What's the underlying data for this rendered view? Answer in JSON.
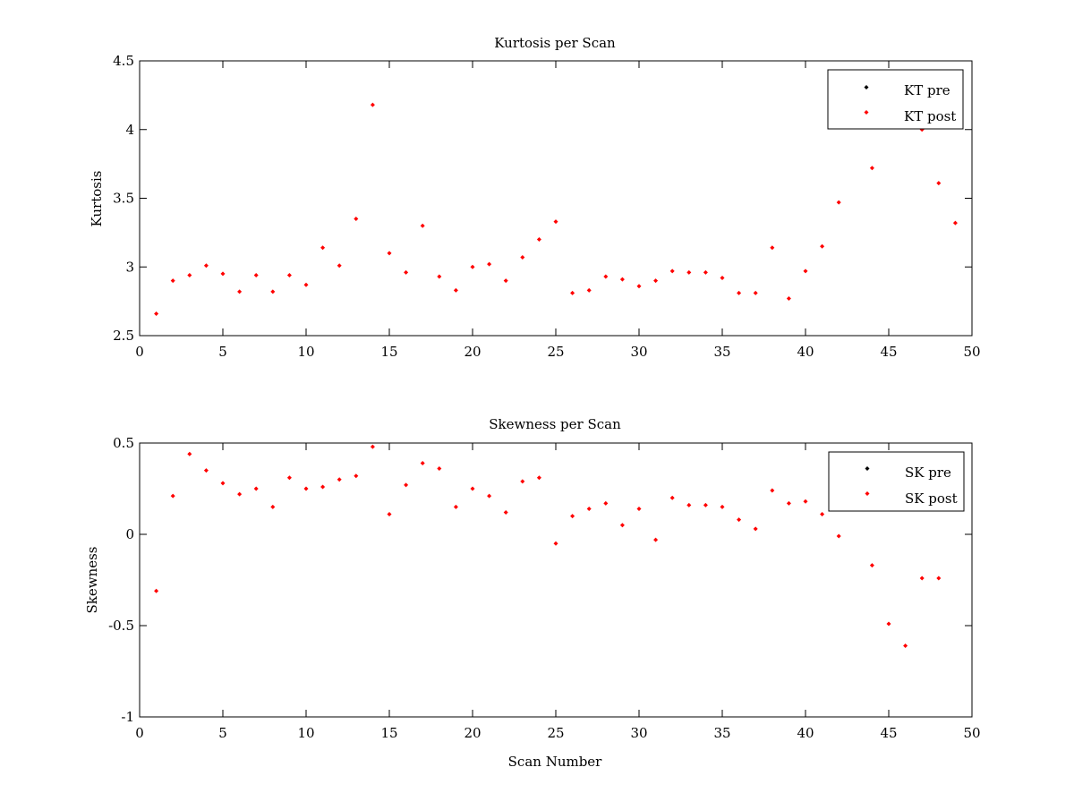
{
  "chart_data": [
    {
      "type": "scatter",
      "title": "Kurtosis per Scan",
      "xlabel": "",
      "ylabel": "Kurtosis",
      "xlim": [
        0,
        50
      ],
      "ylim": [
        2.5,
        4.5
      ],
      "xticks": [
        "0",
        "5",
        "10",
        "15",
        "20",
        "25",
        "30",
        "35",
        "40",
        "45",
        "50"
      ],
      "yticks": [
        "2.5",
        "3",
        "3.5",
        "4",
        "4.5"
      ],
      "legend": {
        "placement": "top-right",
        "entries": [
          "KT pre",
          "KT post"
        ]
      },
      "series": [
        {
          "name": "KT pre",
          "color": "#000000",
          "x": [],
          "y": []
        },
        {
          "name": "KT post",
          "color": "#ff0000",
          "x": [
            1,
            2,
            3,
            4,
            5,
            6,
            7,
            8,
            9,
            10,
            11,
            12,
            13,
            14,
            15,
            16,
            17,
            18,
            19,
            20,
            21,
            22,
            23,
            24,
            25,
            26,
            27,
            28,
            29,
            30,
            31,
            32,
            33,
            34,
            35,
            36,
            37,
            38,
            39,
            40,
            41,
            42,
            44,
            47,
            48,
            49
          ],
          "y": [
            2.66,
            2.9,
            2.94,
            3.01,
            2.95,
            2.82,
            2.94,
            2.82,
            2.94,
            2.87,
            3.14,
            3.01,
            3.35,
            4.18,
            3.1,
            2.96,
            3.3,
            2.93,
            2.83,
            3.0,
            3.02,
            2.9,
            3.07,
            3.2,
            3.33,
            2.81,
            2.83,
            2.93,
            2.91,
            2.86,
            2.9,
            2.97,
            2.96,
            2.96,
            2.92,
            2.81,
            2.81,
            3.14,
            2.77,
            2.97,
            3.15,
            3.47,
            3.72,
            4.0,
            3.61,
            3.32
          ]
        }
      ]
    },
    {
      "type": "scatter",
      "title": "Skewness per Scan",
      "xlabel": "Scan Number",
      "ylabel": "Skewness",
      "xlim": [
        0,
        50
      ],
      "ylim": [
        -1,
        0.5
      ],
      "xticks": [
        "0",
        "5",
        "10",
        "15",
        "20",
        "25",
        "30",
        "35",
        "40",
        "45",
        "50"
      ],
      "yticks": [
        "-1",
        "-0.5",
        "0",
        "0.5"
      ],
      "legend": {
        "placement": "top-right",
        "entries": [
          "SK pre",
          "SK post"
        ]
      },
      "series": [
        {
          "name": "SK pre",
          "color": "#000000",
          "x": [],
          "y": []
        },
        {
          "name": "SK post",
          "color": "#ff0000",
          "x": [
            1,
            2,
            3,
            4,
            5,
            6,
            7,
            8,
            9,
            10,
            11,
            12,
            13,
            14,
            15,
            16,
            17,
            18,
            19,
            20,
            21,
            22,
            23,
            24,
            25,
            26,
            27,
            28,
            29,
            30,
            31,
            32,
            33,
            34,
            35,
            36,
            37,
            38,
            39,
            40,
            41,
            42,
            44,
            45,
            46,
            47,
            48
          ],
          "y": [
            -0.31,
            0.21,
            0.44,
            0.35,
            0.28,
            0.22,
            0.25,
            0.15,
            0.31,
            0.25,
            0.26,
            0.3,
            0.32,
            0.48,
            0.11,
            0.27,
            0.39,
            0.36,
            0.15,
            0.25,
            0.21,
            0.12,
            0.29,
            0.31,
            -0.05,
            0.1,
            0.14,
            0.17,
            0.05,
            0.14,
            -0.03,
            0.2,
            0.16,
            0.16,
            0.15,
            0.08,
            0.03,
            0.24,
            0.17,
            0.18,
            0.11,
            -0.01,
            -0.17,
            -0.49,
            -0.61,
            -0.24,
            -0.24
          ]
        }
      ]
    }
  ]
}
